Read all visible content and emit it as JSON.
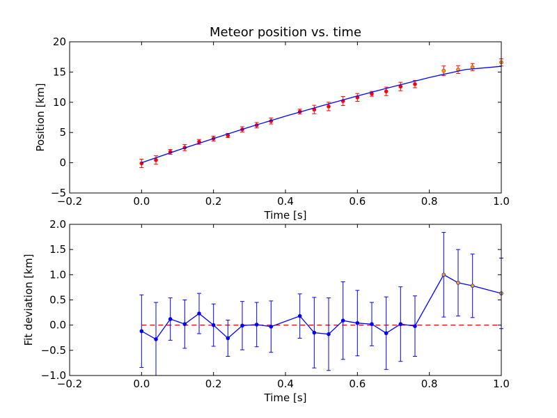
{
  "chart_data": [
    {
      "type": "scatter",
      "title": "Meteor position vs. time",
      "xlabel": "Time [s]",
      "ylabel": "Position [km]",
      "xlim": [
        -0.2,
        1.0
      ],
      "ylim": [
        -5,
        20
      ],
      "xticks": [
        -0.2,
        0.0,
        0.2,
        0.4,
        0.6,
        0.8,
        1.0
      ],
      "xtick_labels": [
        "−0.2",
        "0.0",
        "0.2",
        "0.4",
        "0.6",
        "0.8",
        "1.0"
      ],
      "yticks": [
        -5,
        0,
        5,
        10,
        15,
        20
      ],
      "ytick_labels": [
        "−5",
        "0",
        "5",
        "10",
        "15",
        "20"
      ],
      "grid": false,
      "series": [
        {
          "kind": "errorbar",
          "color": "#ff0000",
          "marker_color": "#ff0000",
          "x": [
            0.0,
            0.04,
            0.08,
            0.12,
            0.16,
            0.2,
            0.24,
            0.28,
            0.32,
            0.36,
            0.44,
            0.48,
            0.52,
            0.56,
            0.6,
            0.64,
            0.68,
            0.72,
            0.76
          ],
          "y": [
            -0.1,
            0.45,
            1.8,
            2.5,
            3.45,
            4.0,
            4.5,
            5.5,
            6.2,
            6.9,
            8.45,
            8.8,
            9.3,
            10.2,
            10.8,
            11.4,
            11.8,
            12.6,
            13.0
          ],
          "err": [
            0.7,
            0.7,
            0.4,
            0.5,
            0.4,
            0.4,
            0.35,
            0.45,
            0.45,
            0.5,
            0.4,
            0.7,
            0.7,
            0.75,
            0.65,
            0.4,
            0.7,
            0.7,
            0.6
          ]
        },
        {
          "kind": "errorbar",
          "color": "#ff0000",
          "marker_color": "#ddaa00",
          "x": [
            0.84,
            0.88,
            0.92,
            1.0
          ],
          "y": [
            15.2,
            15.4,
            15.8,
            16.6
          ],
          "err": [
            0.8,
            0.65,
            0.6,
            0.6
          ]
        },
        {
          "kind": "line",
          "color": "#0000ff",
          "x": [
            0.0,
            0.1,
            0.2,
            0.3,
            0.4,
            0.5,
            0.6,
            0.7,
            0.8,
            0.9,
            1.0
          ],
          "y": [
            0.0,
            2.05,
            4.0,
            5.9,
            7.7,
            9.4,
            11.05,
            12.6,
            14.1,
            15.4,
            15.95
          ]
        }
      ]
    },
    {
      "type": "line",
      "title": "",
      "xlabel": "Time [s]",
      "ylabel": "Fit deviation [km]",
      "xlim": [
        -0.2,
        1.0
      ],
      "ylim": [
        -1.0,
        2.0
      ],
      "xticks": [
        -0.2,
        0.0,
        0.2,
        0.4,
        0.6,
        0.8,
        1.0
      ],
      "xtick_labels": [
        "−0.2",
        "0.0",
        "0.2",
        "0.4",
        "0.6",
        "0.8",
        "1.0"
      ],
      "yticks": [
        -1.0,
        -0.5,
        0.0,
        0.5,
        1.0,
        1.5,
        2.0
      ],
      "ytick_labels": [
        "−1.0",
        "−0.5",
        "0.0",
        "0.5",
        "1.0",
        "1.5",
        "2.0"
      ],
      "grid": false,
      "series": [
        {
          "kind": "errorbar-line",
          "color": "#0000ff",
          "x": [
            0.0,
            0.04,
            0.08,
            0.12,
            0.16,
            0.2,
            0.24,
            0.28,
            0.32,
            0.36,
            0.44,
            0.48,
            0.52,
            0.56,
            0.6,
            0.64,
            0.68,
            0.72,
            0.76,
            0.84,
            0.88,
            0.92,
            1.0
          ],
          "y": [
            -0.12,
            -0.28,
            0.12,
            0.02,
            0.23,
            0.0,
            -0.26,
            -0.01,
            0.01,
            -0.03,
            0.18,
            -0.15,
            -0.18,
            0.09,
            0.04,
            0.02,
            -0.16,
            0.02,
            -0.02,
            1.0,
            0.84,
            0.78,
            0.63
          ],
          "err": [
            0.72,
            0.73,
            0.42,
            0.48,
            0.4,
            0.42,
            0.36,
            0.48,
            0.44,
            0.51,
            0.44,
            0.7,
            0.72,
            0.77,
            0.65,
            0.43,
            0.72,
            0.74,
            0.6,
            0.84,
            0.66,
            0.63,
            0.7
          ],
          "special_marker_color": "#ddaa00",
          "special_from_index": 19
        },
        {
          "kind": "dashed",
          "color": "#ff0000",
          "x": [
            0.0,
            1.0
          ],
          "y": [
            0.0,
            0.0
          ]
        }
      ]
    }
  ]
}
